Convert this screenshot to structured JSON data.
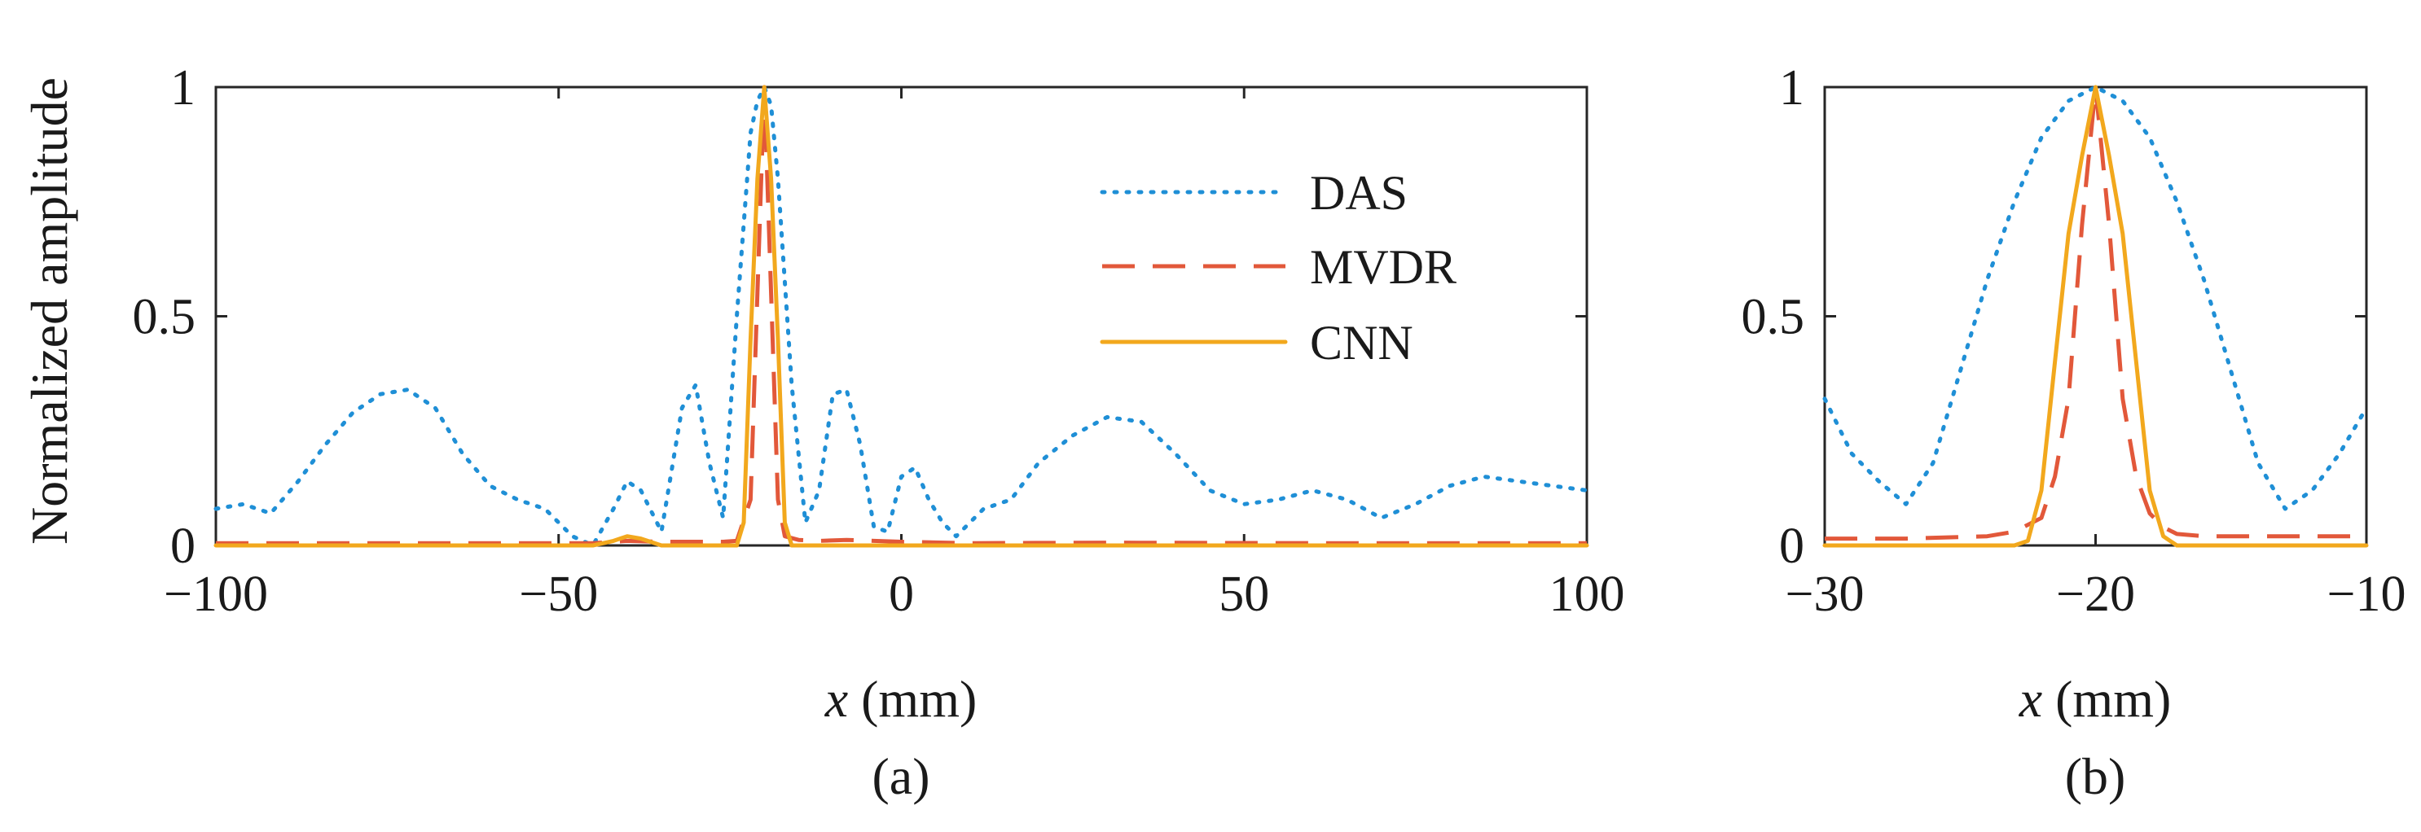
{
  "figure": {
    "ylabel": "Normalized amplitude",
    "colors": {
      "DAS": "#1f8fd6",
      "MVDR": "#e2583a",
      "CNN": "#f2a81d"
    }
  },
  "chart_data": [
    {
      "type": "line",
      "panel_label": "(a)",
      "xlabel_var": "x",
      "xlabel_unit": " (mm)",
      "ylabel": "Normalized amplitude",
      "xlim": [
        -100,
        100
      ],
      "ylim": [
        0,
        1
      ],
      "xticks": [
        -100,
        -50,
        0,
        50,
        100
      ],
      "xtick_labels": [
        "−100",
        "−50",
        "0",
        "50",
        "100"
      ],
      "yticks": [
        0,
        0.5,
        1
      ],
      "ytick_labels": [
        "0",
        "0.5",
        "1"
      ],
      "legend": {
        "placement": "top-right",
        "entries": [
          "DAS",
          "MVDR",
          "CNN"
        ]
      },
      "series": [
        {
          "name": "DAS",
          "style": "dotted",
          "x": [
            -100,
            -96,
            -92,
            -88,
            -84,
            -80,
            -76,
            -72,
            -68,
            -64,
            -60,
            -56,
            -52,
            -48,
            -45,
            -42,
            -40,
            -38,
            -35,
            -32,
            -30,
            -28,
            -26,
            -24,
            -22,
            -21,
            -20,
            -19,
            -18,
            -16,
            -14,
            -12,
            -10,
            -8,
            -6,
            -4,
            -2,
            0,
            2,
            4,
            6,
            8,
            12,
            16,
            20,
            25,
            30,
            35,
            40,
            45,
            50,
            55,
            60,
            65,
            70,
            75,
            80,
            85,
            90,
            95,
            100
          ],
          "y": [
            0.08,
            0.09,
            0.07,
            0.14,
            0.22,
            0.29,
            0.33,
            0.34,
            0.3,
            0.2,
            0.13,
            0.1,
            0.08,
            0.02,
            0.0,
            0.08,
            0.14,
            0.12,
            0.03,
            0.3,
            0.35,
            0.18,
            0.06,
            0.5,
            0.9,
            0.97,
            1.0,
            0.96,
            0.8,
            0.35,
            0.05,
            0.12,
            0.33,
            0.34,
            0.22,
            0.04,
            0.03,
            0.15,
            0.17,
            0.1,
            0.05,
            0.02,
            0.08,
            0.1,
            0.18,
            0.24,
            0.28,
            0.27,
            0.2,
            0.12,
            0.09,
            0.1,
            0.12,
            0.1,
            0.06,
            0.09,
            0.13,
            0.15,
            0.14,
            0.13,
            0.12
          ]
        },
        {
          "name": "MVDR",
          "style": "dashed",
          "x": [
            -100,
            -80,
            -60,
            -45,
            -40,
            -35,
            -30,
            -26,
            -24,
            -22,
            -21,
            -20,
            -19,
            -18,
            -17,
            -15,
            -12,
            -8,
            -4,
            0,
            10,
            30,
            60,
            100
          ],
          "y": [
            0.005,
            0.005,
            0.005,
            0.005,
            0.01,
            0.008,
            0.008,
            0.008,
            0.01,
            0.1,
            0.55,
            1.0,
            0.55,
            0.1,
            0.02,
            0.012,
            0.01,
            0.012,
            0.01,
            0.008,
            0.005,
            0.006,
            0.005,
            0.005
          ]
        },
        {
          "name": "CNN",
          "style": "solid",
          "x": [
            -100,
            -80,
            -60,
            -45,
            -42,
            -40,
            -38,
            -35,
            -30,
            -26,
            -24,
            -23,
            -22,
            -21,
            -20,
            -19,
            -18,
            -17,
            -16,
            -14,
            -10,
            0,
            10,
            30,
            100
          ],
          "y": [
            0.0,
            0.0,
            0.0,
            0.0,
            0.01,
            0.02,
            0.015,
            0.0,
            0.0,
            0.0,
            0.0,
            0.05,
            0.45,
            0.8,
            1.0,
            0.8,
            0.45,
            0.05,
            0.0,
            0.0,
            0.0,
            0.0,
            0.0,
            0.0,
            0.0
          ]
        }
      ]
    },
    {
      "type": "line",
      "panel_label": "(b)",
      "xlabel_var": "x",
      "xlabel_unit": " (mm)",
      "xlim": [
        -30,
        -10
      ],
      "ylim": [
        0,
        1
      ],
      "xticks": [
        -30,
        -20,
        -10
      ],
      "xtick_labels": [
        "−30",
        "−20",
        "−10"
      ],
      "yticks": [
        0,
        0.5,
        1
      ],
      "ytick_labels": [
        "0",
        "0.5",
        "1"
      ],
      "series": [
        {
          "name": "DAS",
          "style": "dotted",
          "x": [
            -30,
            -29,
            -28,
            -27,
            -26,
            -25,
            -24,
            -23,
            -22,
            -21,
            -20,
            -19,
            -18,
            -17,
            -16,
            -15,
            -14,
            -13,
            -12,
            -11,
            -10
          ],
          "y": [
            0.32,
            0.2,
            0.14,
            0.09,
            0.18,
            0.38,
            0.58,
            0.75,
            0.89,
            0.97,
            1.0,
            0.97,
            0.89,
            0.75,
            0.58,
            0.38,
            0.18,
            0.08,
            0.12,
            0.2,
            0.3
          ]
        },
        {
          "name": "MVDR",
          "style": "dashed",
          "x": [
            -30,
            -27,
            -24,
            -23,
            -22,
            -21.5,
            -21,
            -20.5,
            -20,
            -19.5,
            -19,
            -18.5,
            -18,
            -17.5,
            -17,
            -16,
            -14,
            -10
          ],
          "y": [
            0.015,
            0.015,
            0.02,
            0.03,
            0.06,
            0.15,
            0.32,
            0.7,
            1.0,
            0.7,
            0.32,
            0.15,
            0.07,
            0.04,
            0.025,
            0.02,
            0.02,
            0.02
          ]
        },
        {
          "name": "CNN",
          "style": "solid",
          "x": [
            -30,
            -25,
            -23,
            -22.5,
            -22,
            -21.5,
            -21,
            -20.5,
            -20,
            -19.5,
            -19,
            -18.5,
            -18,
            -17.5,
            -17,
            -15,
            -10
          ],
          "y": [
            0.0,
            0.0,
            0.0,
            0.01,
            0.12,
            0.4,
            0.68,
            0.85,
            1.0,
            0.85,
            0.68,
            0.4,
            0.12,
            0.02,
            0.0,
            0.0,
            0.0
          ]
        }
      ]
    }
  ]
}
